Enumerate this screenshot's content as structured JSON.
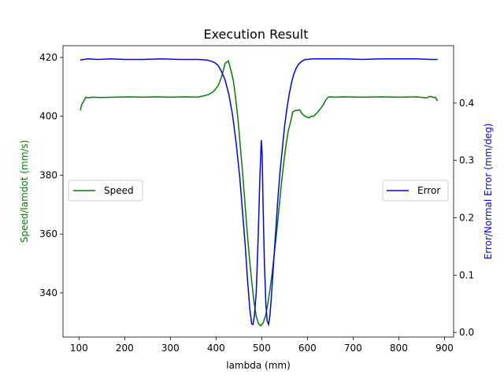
{
  "chart_data": {
    "type": "line",
    "title": "Execution Result",
    "xlabel": "lambda (mm)",
    "ylabel_left": "Speed/lamdot (mm/s)",
    "ylabel_right": "Error/Normal Error (mm/deg)",
    "xlim": [
      65,
      920
    ],
    "ylim_left": [
      325,
      424
    ],
    "ylim_right": [
      -0.008,
      0.5
    ],
    "x_ticks": [
      100,
      200,
      300,
      400,
      500,
      600,
      700,
      800,
      900
    ],
    "y_ticks_left": [
      340,
      360,
      380,
      400,
      420
    ],
    "y_ticks_right": [
      0.0,
      0.1,
      0.2,
      0.3,
      0.4
    ],
    "grid": false,
    "colors": {
      "left_axis_label": "#008000",
      "right_axis_label": "#0000ff"
    },
    "series": [
      {
        "name": "Speed",
        "axis": "left",
        "color": "#008000",
        "legend_position": "center-left",
        "x": [
          103,
          106,
          110,
          115,
          120,
          130,
          150,
          180,
          210,
          240,
          270,
          300,
          330,
          360,
          375,
          385,
          395,
          400,
          405,
          410,
          415,
          420,
          427,
          432,
          438,
          443,
          448,
          453,
          458,
          463,
          468,
          473,
          478,
          483,
          488,
          493,
          498,
          503,
          508,
          513,
          518,
          523,
          528,
          533,
          538,
          543,
          548,
          553,
          558,
          563,
          568,
          573,
          578,
          583,
          588,
          593,
          598,
          603,
          608,
          613,
          620,
          628,
          635,
          640,
          645,
          650,
          660,
          680,
          720,
          760,
          800,
          840,
          860,
          870,
          875,
          880,
          885
        ],
        "y": [
          402,
          404,
          405,
          406.5,
          406.3,
          406.5,
          406.4,
          406.5,
          406.6,
          406.5,
          406.6,
          406.5,
          406.6,
          406.5,
          407,
          407.5,
          408.5,
          409.5,
          410.5,
          412.5,
          415,
          418,
          418.8,
          416,
          412,
          406,
          399,
          390,
          381,
          371,
          361,
          352,
          344,
          337,
          332,
          329.5,
          328.8,
          329.8,
          332,
          336,
          341,
          347,
          354,
          361,
          369,
          377,
          384,
          390,
          395,
          398,
          401.5,
          402,
          402,
          402.2,
          401,
          400.2,
          399.8,
          399.5,
          400,
          400,
          401,
          402.5,
          404,
          405.5,
          406.5,
          406.6,
          406.5,
          406.6,
          406.5,
          406.6,
          406.5,
          406.6,
          406.3,
          406.8,
          406.4,
          406.5,
          405.2
        ]
      },
      {
        "name": "Error",
        "axis": "right",
        "color": "#0000ff",
        "legend_position": "center-right",
        "x": [
          103,
          110,
          120,
          140,
          170,
          200,
          240,
          280,
          320,
          360,
          380,
          390,
          398,
          405,
          412,
          420,
          428,
          436,
          444,
          452,
          458,
          464,
          469,
          474,
          478,
          481,
          484,
          488,
          492,
          496,
          499,
          501,
          503,
          506,
          509,
          512,
          515,
          518,
          521,
          525,
          530,
          535,
          540,
          545,
          550,
          555,
          560,
          565,
          570,
          575,
          580,
          585,
          590,
          595,
          600,
          610,
          620,
          640,
          680,
          720,
          760,
          800,
          840,
          870,
          885
        ],
        "y": [
          0.475,
          0.476,
          0.477,
          0.476,
          0.477,
          0.476,
          0.476,
          0.477,
          0.476,
          0.476,
          0.475,
          0.473,
          0.47,
          0.465,
          0.455,
          0.44,
          0.415,
          0.38,
          0.33,
          0.27,
          0.21,
          0.15,
          0.09,
          0.04,
          0.015,
          0.014,
          0.03,
          0.07,
          0.16,
          0.27,
          0.335,
          0.31,
          0.22,
          0.12,
          0.05,
          0.02,
          0.014,
          0.03,
          0.06,
          0.11,
          0.17,
          0.23,
          0.28,
          0.32,
          0.36,
          0.39,
          0.415,
          0.435,
          0.45,
          0.46,
          0.467,
          0.471,
          0.474,
          0.476,
          0.476,
          0.477,
          0.477,
          0.477,
          0.477,
          0.476,
          0.477,
          0.477,
          0.477,
          0.476,
          0.476
        ]
      }
    ]
  }
}
